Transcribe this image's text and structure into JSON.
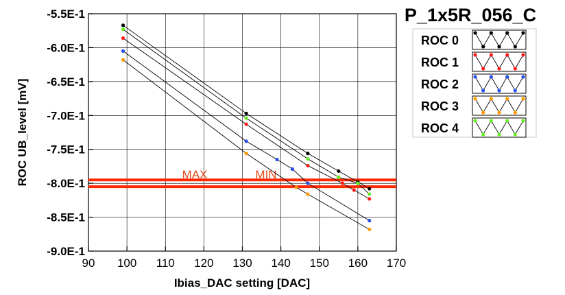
{
  "chart_data": {
    "type": "scatter",
    "title": "P_1x5R_056_C",
    "xlabel": "Ibias_DAC setting [DAC]",
    "ylabel": "ROC UB_level [mV]",
    "xlim": [
      90,
      170
    ],
    "ylim": [
      -0.9,
      -0.55
    ],
    "x_ticks": [
      "90",
      "100",
      "110",
      "120",
      "130",
      "140",
      "150",
      "160",
      "170"
    ],
    "y_ticks": [
      "-5.5E-1",
      "-6.0E-1",
      "-6.5E-1",
      "-7.0E-1",
      "-7.5E-1",
      "-8.0E-1",
      "-8.5E-1",
      "-9.0E-1"
    ],
    "grid": true,
    "legend_placement": "top-right",
    "limits": [
      {
        "label": "MAX",
        "value": -0.795,
        "color": "#ff2a00",
        "label_color": "#e04a1a"
      },
      {
        "label": "MIN",
        "value": -0.805,
        "color": "#ff2a00",
        "label_color": "#e04a1a"
      }
    ],
    "series": [
      {
        "name": "ROC 0",
        "color": "#000000",
        "x": [
          99,
          131,
          147,
          155,
          160,
          163
        ],
        "y": [
          -0.567,
          -0.697,
          -0.756,
          -0.782,
          -0.798,
          -0.808
        ]
      },
      {
        "name": "ROC 1",
        "color": "#ff1a1a",
        "x": [
          99,
          131,
          147,
          156,
          159,
          163
        ],
        "y": [
          -0.586,
          -0.713,
          -0.774,
          -0.8,
          -0.81,
          -0.823
        ]
      },
      {
        "name": "ROC 2",
        "color": "#2a4ee8",
        "x": [
          99,
          131,
          139,
          143,
          147,
          163
        ],
        "y": [
          -0.605,
          -0.738,
          -0.765,
          -0.779,
          -0.8,
          -0.855
        ]
      },
      {
        "name": "ROC 3",
        "color": "#ff9900",
        "x": [
          99,
          131,
          144,
          147,
          163
        ],
        "y": [
          -0.618,
          -0.756,
          -0.806,
          -0.816,
          -0.868
        ]
      },
      {
        "name": "ROC 4",
        "color": "#66ee22",
        "x": [
          99,
          131,
          147,
          155,
          160,
          163
        ],
        "y": [
          -0.573,
          -0.704,
          -0.764,
          -0.791,
          -0.8,
          -0.816
        ]
      }
    ]
  }
}
